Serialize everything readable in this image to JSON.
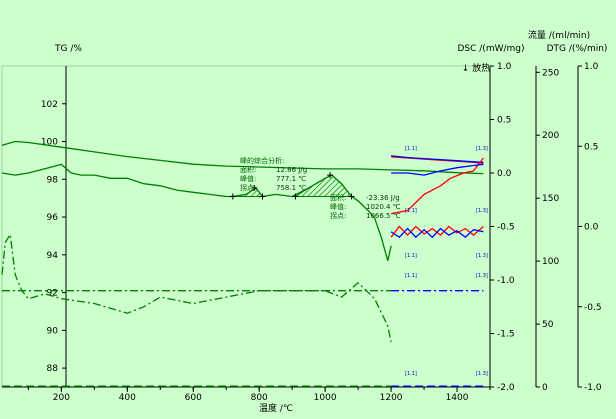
{
  "chart_data": {
    "type": "line",
    "title": "",
    "x_axis": {
      "label": "温度 /℃",
      "range": [
        20,
        1500
      ],
      "ticks": [
        200,
        400,
        600,
        800,
        1000,
        1200,
        1400
      ]
    },
    "y_axes": {
      "tg": {
        "label": "TG /%",
        "range": [
          87,
          104
        ],
        "ticks": [
          88,
          90,
          92,
          94,
          96,
          98,
          100,
          102
        ]
      },
      "dsc": {
        "label": "DSC /(mW/mg)",
        "exo_label": "↓ 放热",
        "range": [
          -2.0,
          1.0
        ],
        "ticks": [
          "1.0",
          "0.5",
          "0.0",
          "-0.5",
          "-1.0",
          "-1.5",
          "-2.0"
        ],
        "tick_values": [
          1.0,
          0.5,
          0.0,
          -0.5,
          -1.0,
          -1.5,
          -2.0
        ]
      },
      "flow": {
        "label": "流量 /(ml/min)",
        "range": [
          0,
          255
        ],
        "ticks": [
          0,
          50,
          100,
          150,
          200,
          250
        ]
      },
      "dtg": {
        "label": "DTG /(%/min)",
        "range": [
          -1.0,
          1.0
        ],
        "ticks": [
          "1.0",
          "0.5",
          "0.0",
          "-0.5",
          "-1.0"
        ],
        "tick_values": [
          1.0,
          0.5,
          0.0,
          -0.5,
          -1.0
        ]
      }
    },
    "series": [
      {
        "key": "tg",
        "axis": "tg",
        "color": "#008000",
        "style": "solid",
        "x": [
          20,
          60,
          100,
          200,
          300,
          400,
          500,
          600,
          700,
          800,
          900,
          1000,
          1100,
          1200,
          1300,
          1400,
          1480
        ],
        "y": [
          99.8,
          100.0,
          99.95,
          99.7,
          99.45,
          99.2,
          99.0,
          98.8,
          98.7,
          98.65,
          98.6,
          98.55,
          98.55,
          98.5,
          98.45,
          98.35,
          98.3
        ]
      },
      {
        "key": "dsc",
        "axis": "dsc",
        "color": "#008000",
        "style": "solid",
        "x": [
          20,
          60,
          100,
          150,
          200,
          230,
          260,
          300,
          350,
          400,
          450,
          500,
          550,
          600,
          650,
          700,
          720,
          760,
          790,
          810,
          850,
          900,
          950,
          1000,
          1020,
          1050,
          1080,
          1100,
          1130,
          1150,
          1170,
          1190,
          1200
        ],
        "y": [
          0.0,
          -0.02,
          0.0,
          0.04,
          0.08,
          0.0,
          -0.02,
          -0.02,
          -0.05,
          -0.05,
          -0.1,
          -0.12,
          -0.16,
          -0.18,
          -0.2,
          -0.22,
          -0.22,
          -0.2,
          -0.14,
          -0.22,
          -0.2,
          -0.22,
          -0.14,
          -0.05,
          -0.02,
          -0.1,
          -0.22,
          -0.26,
          -0.35,
          -0.42,
          -0.6,
          -0.82,
          -0.68
        ]
      },
      {
        "key": "dtg",
        "axis": "dtg",
        "color": "#008000",
        "style": "dashdot",
        "x": [
          20,
          30,
          45,
          60,
          80,
          100,
          150,
          200,
          300,
          400,
          450,
          500,
          600,
          700,
          800,
          900,
          1000,
          1050,
          1100,
          1150,
          1190,
          1200
        ],
        "y": [
          -0.3,
          -0.1,
          -0.05,
          -0.3,
          -0.4,
          -0.45,
          -0.42,
          -0.45,
          -0.48,
          -0.54,
          -0.5,
          -0.44,
          -0.48,
          -0.44,
          -0.4,
          -0.4,
          -0.4,
          -0.44,
          -0.35,
          -0.45,
          -0.62,
          -0.72
        ]
      },
      {
        "key": "flow_red",
        "axis": "dsc",
        "color": "#ff0000",
        "style": "solid",
        "x": [
          1200,
          1250,
          1300,
          1350,
          1400,
          1450,
          1480
        ],
        "y": [
          0.15,
          0.14,
          0.13,
          0.12,
          0.11,
          0.1,
          0.09
        ]
      },
      {
        "key": "flow_blue",
        "axis": "dsc",
        "color": "#0000ff",
        "style": "solid",
        "x": [
          1200,
          1250,
          1300,
          1350,
          1400,
          1450,
          1480
        ],
        "y": [
          0.16,
          0.145,
          0.135,
          0.125,
          0.115,
          0.105,
          0.1
        ]
      },
      {
        "key": "dsc_red_end",
        "axis": "dsc",
        "color": "#ff0000",
        "style": "solid",
        "x": [
          1200,
          1250,
          1300,
          1350,
          1380,
          1420,
          1450,
          1480
        ],
        "y": [
          -0.38,
          -0.35,
          -0.2,
          -0.12,
          -0.05,
          0.0,
          0.02,
          0.14
        ]
      },
      {
        "key": "dsc_blue_end",
        "axis": "dsc",
        "color": "#0000ff",
        "style": "solid",
        "x": [
          1200,
          1250,
          1300,
          1350,
          1400,
          1450,
          1480
        ],
        "y": [
          0.0,
          0.0,
          -0.02,
          0.02,
          0.05,
          0.07,
          0.08
        ]
      },
      {
        "key": "dtg_red_end",
        "axis": "dsc",
        "color": "#ff0000",
        "style": "solid",
        "x": [
          1200,
          1225,
          1250,
          1275,
          1300,
          1325,
          1350,
          1375,
          1400,
          1425,
          1450,
          1480
        ],
        "y": [
          -0.6,
          -0.5,
          -0.58,
          -0.5,
          -0.57,
          -0.52,
          -0.58,
          -0.5,
          -0.56,
          -0.52,
          -0.58,
          -0.5
        ]
      },
      {
        "key": "dtg_blue_end",
        "axis": "dsc",
        "color": "#0000ff",
        "style": "solid",
        "x": [
          1200,
          1225,
          1250,
          1275,
          1300,
          1325,
          1350,
          1375,
          1400,
          1425,
          1450,
          1480
        ],
        "y": [
          -0.55,
          -0.6,
          -0.52,
          -0.6,
          -0.53,
          -0.6,
          -0.52,
          -0.58,
          -0.54,
          -0.6,
          -0.53,
          -0.55
        ]
      },
      {
        "key": "ref_92",
        "axis": "tg",
        "color": "#008000",
        "style": "dashdot",
        "x": [
          20,
          1200
        ],
        "y": [
          92.1,
          92.1
        ]
      },
      {
        "key": "ref_92_blue",
        "axis": "tg",
        "color": "#0000ff",
        "style": "dashdot",
        "x": [
          1200,
          1480
        ],
        "y": [
          92.1,
          92.1
        ]
      },
      {
        "key": "ref_87",
        "axis": "tg",
        "color": "#008000",
        "style": "dashed",
        "x": [
          20,
          1200
        ],
        "y": [
          87.05,
          87.05
        ]
      },
      {
        "key": "ref_87_blue",
        "axis": "tg",
        "color": "#0000ff",
        "style": "dashed",
        "x": [
          1200,
          1480
        ],
        "y": [
          87.05,
          87.05
        ]
      }
    ],
    "peak_areas": [
      {
        "x": [
          720,
          760,
          790,
          810
        ],
        "dsc": [
          -0.22,
          -0.2,
          -0.14,
          -0.22
        ]
      },
      {
        "x": [
          910,
          950,
          1000,
          1020,
          1050,
          1080
        ],
        "dsc": [
          -0.22,
          -0.14,
          -0.05,
          -0.02,
          -0.1,
          -0.22
        ]
      }
    ],
    "peak_markers": [
      {
        "x": 720,
        "dsc": -0.22
      },
      {
        "x": 785,
        "dsc": -0.14
      },
      {
        "x": 810,
        "dsc": -0.22
      },
      {
        "x": 910,
        "dsc": -0.22
      },
      {
        "x": 1015,
        "dsc": -0.02
      },
      {
        "x": 1080,
        "dsc": -0.22
      }
    ],
    "annotations": [
      {
        "lines": [
          "峰的综合分析:",
          "面积:",
          "峰值:",
          "拐点:"
        ],
        "values": [
          "",
          "12.86 J/g",
          "777.1 ℃",
          "758.1 ℃"
        ]
      },
      {
        "lines": [
          "面积:",
          "峰值:",
          "拐点:"
        ],
        "values": [
          "-23.36 J/g",
          "1020.4 ℃",
          "1066.5 ℃"
        ]
      }
    ],
    "segment_markers": [
      "[1.1]",
      "[1.3]"
    ]
  }
}
